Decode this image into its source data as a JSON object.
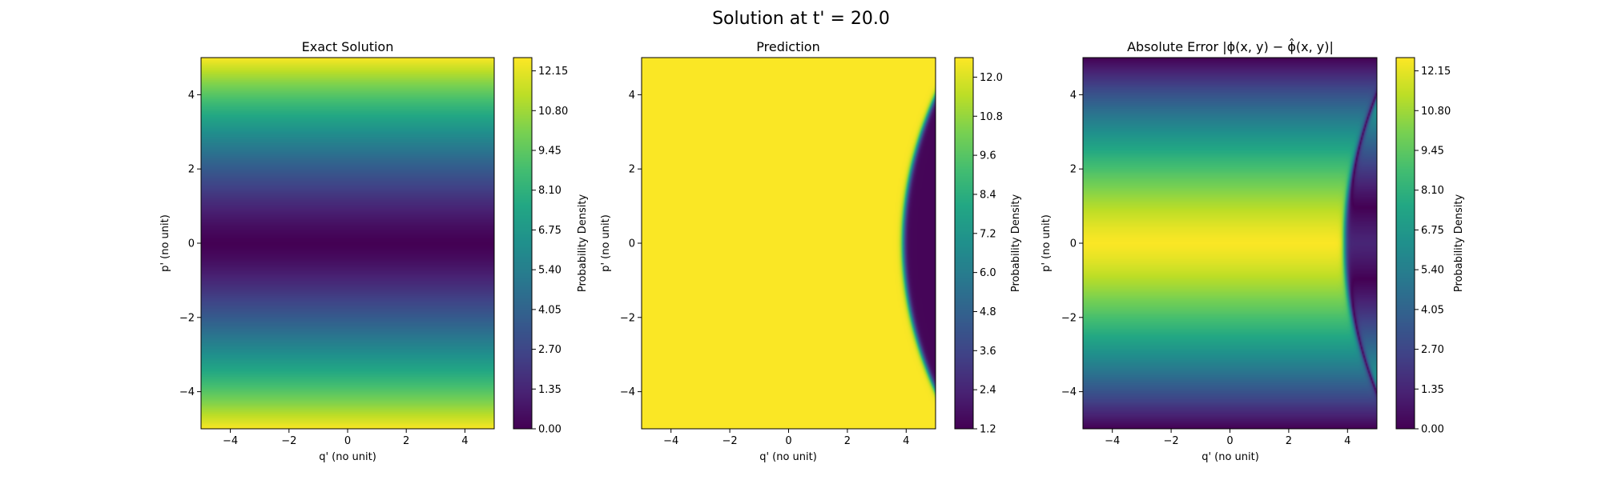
{
  "figure": {
    "suptitle": "Solution at t' = 20.0"
  },
  "colormap": "viridis",
  "chart_data": [
    {
      "type": "heatmap",
      "title": "Exact Solution",
      "xlabel": "q' (no unit)",
      "ylabel": "p' (no unit)",
      "xlim": [
        -5,
        5
      ],
      "ylim": [
        -5,
        5
      ],
      "xticks": [
        -4,
        -2,
        0,
        2,
        4
      ],
      "yticks": [
        -4,
        -2,
        0,
        2,
        4
      ],
      "xtick_labels": [
        "−4",
        "−2",
        "0",
        "2",
        "4"
      ],
      "ytick_labels": [
        "−4",
        "−2",
        "0",
        "2",
        "4"
      ],
      "colorbar": {
        "label": "Probability Density",
        "range": [
          0,
          12.6
        ],
        "ticks": [
          0.0,
          1.35,
          2.7,
          4.05,
          5.4,
          6.75,
          8.1,
          9.45,
          10.8,
          12.15
        ],
        "tick_labels": [
          "0.00",
          "1.35",
          "2.70",
          "4.05",
          "5.40",
          "6.75",
          "8.10",
          "9.45",
          "10.80",
          "12.15"
        ]
      },
      "field": "exact",
      "field_description": "value depends on p' only: ~0 at p'=0 rising to ~12.5 at p'=±5"
    },
    {
      "type": "heatmap",
      "title": "Prediction",
      "xlabel": "q' (no unit)",
      "ylabel": "p' (no unit)",
      "xlim": [
        -5,
        5
      ],
      "ylim": [
        -5,
        5
      ],
      "xticks": [
        -4,
        -2,
        0,
        2,
        4
      ],
      "yticks": [
        -4,
        -2,
        0,
        2,
        4
      ],
      "xtick_labels": [
        "−4",
        "−2",
        "0",
        "2",
        "4"
      ],
      "ytick_labels": [
        "−4",
        "−2",
        "0",
        "2",
        "4"
      ],
      "colorbar": {
        "label": "Probability Density",
        "range": [
          1.2,
          12.6
        ],
        "ticks": [
          1.2,
          2.4,
          3.6,
          4.8,
          6.0,
          7.2,
          8.4,
          9.6,
          10.8,
          12.0
        ],
        "tick_labels": [
          "1.2",
          "2.4",
          "3.6",
          "4.8",
          "6.0",
          "7.2",
          "8.4",
          "9.6",
          "10.8",
          "12.0"
        ]
      },
      "field": "prediction",
      "field_description": "~12.5 everywhere except a dark region right of curve q' = 3.9 + 0.07·p'^2 where value ~1.3"
    },
    {
      "type": "heatmap",
      "title": "Absolute Error |ϕ(x, y) − ϕ̂(x, y)|",
      "xlabel": "q' (no unit)",
      "ylabel": "p' (no unit)",
      "xlim": [
        -5,
        5
      ],
      "ylim": [
        -5,
        5
      ],
      "xticks": [
        -4,
        -2,
        0,
        2,
        4
      ],
      "yticks": [
        -4,
        -2,
        0,
        2,
        4
      ],
      "xtick_labels": [
        "−4",
        "−2",
        "0",
        "2",
        "4"
      ],
      "ytick_labels": [
        "−4",
        "−2",
        "0",
        "2",
        "4"
      ],
      "colorbar": {
        "label": "Probability Density",
        "range": [
          0,
          12.6
        ],
        "ticks": [
          0.0,
          1.35,
          2.7,
          4.05,
          5.4,
          6.75,
          8.1,
          9.45,
          10.8,
          12.15
        ],
        "tick_labels": [
          "0.00",
          "1.35",
          "2.70",
          "4.05",
          "5.40",
          "6.75",
          "8.10",
          "9.45",
          "10.80",
          "12.15"
        ]
      },
      "field": "error",
      "field_description": "|exact − prediction|"
    }
  ]
}
